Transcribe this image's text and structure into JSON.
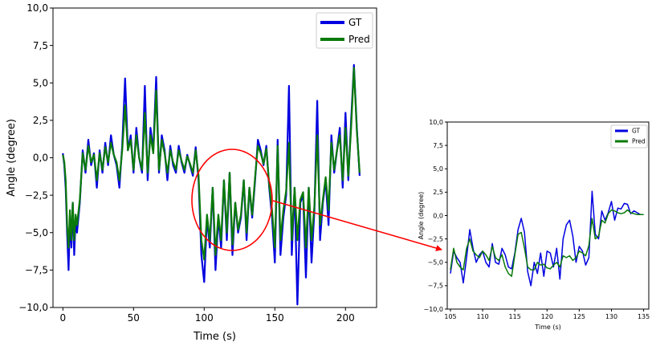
{
  "chart_data": [
    {
      "type": "line",
      "xlabel": "Time (s)",
      "ylabel": "Angle (degree)",
      "xlim": [
        -7,
        222
      ],
      "ylim": [
        -10,
        10
      ],
      "xticks": [
        0,
        50,
        100,
        150,
        200
      ],
      "yticks": [
        -10,
        -7.5,
        -5,
        -2.5,
        0,
        2.5,
        5,
        7.5,
        10
      ],
      "ytick_labels": [
        "−10,0",
        "−7,5",
        "−5,0",
        "−2,5",
        "0,0",
        "2,5",
        "5,0",
        "7,5",
        "10,0"
      ],
      "legend": {
        "placement": "top-right",
        "entries": [
          "GT",
          "Pred"
        ]
      },
      "colors": {
        "GT": "#0000e0",
        "Pred": "#0a7a0a"
      },
      "series": [
        {
          "name": "GT",
          "x": [
            0,
            1,
            2,
            3,
            4,
            5,
            6,
            7,
            8,
            9,
            10,
            12,
            14,
            16,
            18,
            20,
            22,
            24,
            26,
            28,
            30,
            32,
            34,
            36,
            38,
            40,
            42,
            44,
            46,
            48,
            50,
            52,
            54,
            56,
            58,
            60,
            62,
            64,
            66,
            68,
            70,
            72,
            74,
            76,
            78,
            80,
            82,
            84,
            86,
            88,
            90,
            92,
            94,
            96,
            98,
            100,
            102,
            104,
            106,
            108,
            110,
            112,
            114,
            116,
            118,
            120,
            122,
            124,
            126,
            128,
            130,
            132,
            134,
            136,
            138,
            140,
            142,
            144,
            146,
            148,
            150,
            152,
            154,
            156,
            158,
            160,
            162,
            164,
            166,
            168,
            170,
            172,
            174,
            176,
            178,
            180,
            182,
            184,
            186,
            188,
            190,
            192,
            194,
            196,
            198,
            200,
            202,
            204,
            206,
            208,
            210
          ],
          "y": [
            0.3,
            -0.5,
            -2,
            -5,
            -7.5,
            -4,
            -6,
            -3,
            -6.5,
            -4,
            -5,
            -3,
            0.5,
            -1,
            1.2,
            -0.5,
            0.3,
            -2,
            0.5,
            -1,
            1,
            -0.5,
            1.5,
            0.2,
            -0.5,
            -2,
            0.8,
            5.3,
            0.5,
            1.5,
            -1,
            2,
            0,
            -1,
            4.8,
            -1.5,
            2,
            0.5,
            5.4,
            -1,
            1.5,
            0.5,
            -1.5,
            0.8,
            -0.5,
            -1,
            0.8,
            -0.3,
            -1,
            0.2,
            -0.5,
            -1.2,
            0.7,
            -1.5,
            -6.5,
            -8.3,
            -4,
            -6,
            -2,
            -7.5,
            -4,
            -6,
            -1.5,
            -5.5,
            -1,
            -6.5,
            -3,
            -5,
            -4,
            -1.5,
            -5.5,
            -2,
            -4,
            -1.5,
            1.2,
            0.5,
            -0.5,
            0.8,
            -2,
            -4,
            -7,
            1.2,
            -6.5,
            -4,
            -2.5,
            4.8,
            -6.5,
            -2,
            -9.8,
            -3,
            -2.5,
            -8,
            -2,
            -7,
            -3.5,
            3.8,
            -5.5,
            -3,
            -1.5,
            -4.5,
            1.5,
            -1,
            0.5,
            2,
            -2,
            3,
            -1.5,
            2.5,
            6.2,
            2,
            -1.2
          ]
        },
        {
          "name": "Pred",
          "x": [
            0,
            1,
            2,
            3,
            4,
            5,
            6,
            7,
            8,
            9,
            10,
            12,
            14,
            16,
            18,
            20,
            22,
            24,
            26,
            28,
            30,
            32,
            34,
            36,
            38,
            40,
            42,
            44,
            46,
            48,
            50,
            52,
            54,
            56,
            58,
            60,
            62,
            64,
            66,
            68,
            70,
            72,
            74,
            76,
            78,
            80,
            82,
            84,
            86,
            88,
            90,
            92,
            94,
            96,
            98,
            100,
            102,
            104,
            106,
            108,
            110,
            112,
            114,
            116,
            118,
            120,
            122,
            124,
            126,
            128,
            130,
            132,
            134,
            136,
            138,
            140,
            142,
            144,
            146,
            148,
            150,
            152,
            154,
            156,
            158,
            160,
            162,
            164,
            166,
            168,
            170,
            172,
            174,
            176,
            178,
            180,
            182,
            184,
            186,
            188,
            190,
            192,
            194,
            196,
            198,
            200,
            202,
            204,
            206,
            208,
            210
          ],
          "y": [
            0.2,
            -0.3,
            -1.5,
            -4.5,
            -6,
            -3.5,
            -5.5,
            -3,
            -5.5,
            -3.8,
            -4.5,
            -2.8,
            0.3,
            -0.8,
            0.8,
            -0.3,
            0.2,
            -1.5,
            0.3,
            -0.8,
            0.7,
            -0.3,
            1,
            0.2,
            -0.3,
            -1.5,
            0.5,
            3.5,
            0.5,
            1.2,
            -0.8,
            1.5,
            0,
            -0.8,
            3,
            -1,
            1.5,
            0.3,
            4.5,
            -0.8,
            1.2,
            0.3,
            -1,
            0.5,
            -0.3,
            -0.8,
            0.5,
            -0.2,
            -0.8,
            0.1,
            -0.4,
            -1,
            0.5,
            -1.2,
            -5.5,
            -6.8,
            -3.8,
            -5.5,
            -2,
            -6.5,
            -3.8,
            -5.5,
            -1.5,
            -5,
            -1,
            -5.8,
            -3,
            -4.8,
            -3.8,
            -1.5,
            -5,
            -2,
            -3.8,
            -1.3,
            0.8,
            0.3,
            -0.4,
            0.6,
            -1.8,
            -3.5,
            -6,
            0.8,
            -5.5,
            -3.5,
            -2.2,
            1,
            -5.5,
            -2,
            -5.5,
            -2.8,
            -2.3,
            -6,
            -2,
            -5.5,
            -3.2,
            1.5,
            -4.5,
            -2.8,
            -1.3,
            -3.5,
            1,
            -0.8,
            0.5,
            1.5,
            -1.5,
            2,
            -1.2,
            2,
            6,
            1.8,
            -1
          ]
        }
      ]
    },
    {
      "type": "line",
      "xlabel": "Time (s)",
      "ylabel": "Angle (degree)",
      "xlim": [
        104.5,
        135.8
      ],
      "ylim": [
        -10,
        10
      ],
      "xticks": [
        105,
        110,
        115,
        120,
        125,
        130,
        135
      ],
      "yticks": [
        -10,
        -7.5,
        -5,
        -2.5,
        0,
        2.5,
        5,
        7.5,
        10
      ],
      "ytick_labels": [
        "−10,0",
        "−7,5",
        "−5,0",
        "−2,5",
        "0,0",
        "2,5",
        "5,0",
        "7,5",
        "10,0"
      ],
      "legend": {
        "placement": "top-right",
        "entries": [
          "GT",
          "Pred"
        ]
      },
      "colors": {
        "GT": "#0000e0",
        "Pred": "#0a7a0a"
      },
      "series": [
        {
          "name": "GT",
          "x": [
            105,
            105.5,
            106,
            106.5,
            107,
            107.5,
            108,
            108.5,
            109,
            109.5,
            110,
            110.5,
            111,
            111.5,
            112,
            112.5,
            113,
            113.5,
            114,
            114.5,
            115,
            115.5,
            116,
            116.5,
            117,
            117.5,
            118,
            118.5,
            119,
            119.5,
            120,
            120.5,
            121,
            121.5,
            122,
            122.5,
            123,
            123.5,
            124,
            124.5,
            125,
            125.5,
            126,
            126.5,
            127,
            127.5,
            128,
            128.5,
            129,
            129.5,
            130,
            130.5,
            131,
            131.5,
            132,
            132.5,
            133,
            133.5,
            134,
            134.5,
            135
          ],
          "y": [
            -6.2,
            -3.8,
            -4.5,
            -5,
            -7.2,
            -4.5,
            -1.5,
            -3.5,
            -5,
            -4.2,
            -3.8,
            -5,
            -5.5,
            -3,
            -5,
            -5.2,
            -3.5,
            -4.2,
            -5.5,
            -5.7,
            -4,
            -1.5,
            -0.3,
            -1.8,
            -6,
            -7.5,
            -5,
            -6.2,
            -4,
            -6.5,
            -3.8,
            -4,
            -5.5,
            -3.5,
            -6.8,
            -2.5,
            -1,
            -0.5,
            -2.2,
            -5,
            -3.3,
            -3.8,
            -5.3,
            -4.5,
            2.6,
            -2,
            -2.5,
            0.5,
            -0.5,
            0.3,
            1.5,
            -0.5,
            0.8,
            0.7,
            1.3,
            1.2,
            0.2,
            0.5,
            0.3,
            0.1,
            0.1
          ]
        },
        {
          "name": "Pred",
          "x": [
            105,
            105.5,
            106,
            106.5,
            107,
            107.5,
            108,
            108.5,
            109,
            109.5,
            110,
            110.5,
            111,
            111.5,
            112,
            112.5,
            113,
            113.5,
            114,
            114.5,
            115,
            115.5,
            116,
            116.5,
            117,
            117.5,
            118,
            118.5,
            119,
            119.5,
            120,
            120.5,
            121,
            121.5,
            122,
            122.5,
            123,
            123.5,
            124,
            124.5,
            125,
            125.5,
            126,
            126.5,
            127,
            127.5,
            128,
            128.5,
            129,
            129.5,
            130,
            130.5,
            131,
            131.5,
            132,
            132.5,
            133,
            133.5,
            134,
            134.5,
            135
          ],
          "y": [
            -5.8,
            -3.5,
            -5,
            -5.5,
            -5.8,
            -3.5,
            -2.5,
            -3.8,
            -4.2,
            -4.5,
            -3.8,
            -4.2,
            -4.8,
            -3.3,
            -4.5,
            -4.8,
            -4.2,
            -5.5,
            -6.2,
            -6.5,
            -4.2,
            -2,
            -1.8,
            -3.5,
            -5.5,
            -5.8,
            -5.8,
            -5,
            -5.3,
            -5.2,
            -5.6,
            -5.7,
            -5.3,
            -5,
            -5.5,
            -4.3,
            -4.5,
            -4.3,
            -4.8,
            -4.5,
            -3.8,
            -4,
            -4.3,
            -3.2,
            -0.3,
            -2.5,
            -2.2,
            -0.5,
            -0.8,
            0.2,
            0.6,
            0.5,
            0.3,
            0.2,
            0.3,
            0.6,
            0.3,
            0.2,
            0.1,
            0.1,
            0.1
          ]
        }
      ]
    }
  ]
}
